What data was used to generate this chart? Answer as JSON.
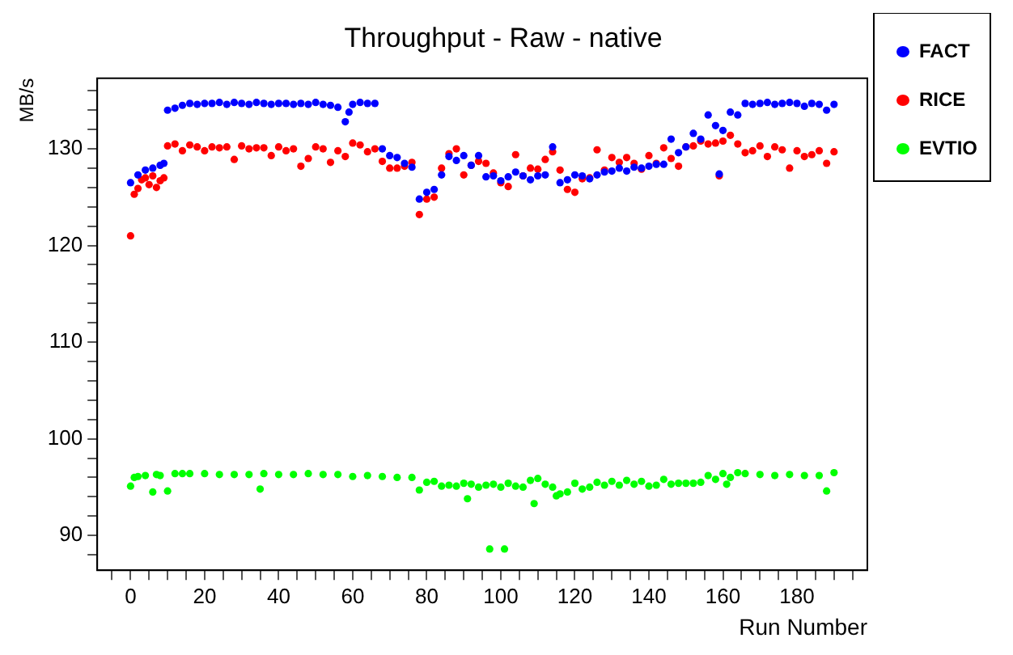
{
  "chart_data": {
    "type": "scatter",
    "title": "Throughput - Raw - native",
    "xlabel": "Run Number",
    "ylabel": "MB/s",
    "xlim": [
      -9,
      199
    ],
    "ylim": [
      86.4,
      137.3
    ],
    "xticks": [
      {
        "value": -5,
        "label": null
      },
      0,
      {
        "value": 5,
        "label": null
      },
      {
        "value": 10,
        "label": null
      },
      {
        "value": 15,
        "label": null
      },
      20,
      {
        "value": 25,
        "label": null
      },
      {
        "value": 30,
        "label": null
      },
      {
        "value": 35,
        "label": null
      },
      40,
      {
        "value": 45,
        "label": null
      },
      {
        "value": 50,
        "label": null
      },
      {
        "value": 55,
        "label": null
      },
      60,
      {
        "value": 65,
        "label": null
      },
      {
        "value": 70,
        "label": null
      },
      {
        "value": 75,
        "label": null
      },
      80,
      {
        "value": 85,
        "label": null
      },
      {
        "value": 90,
        "label": null
      },
      {
        "value": 95,
        "label": null
      },
      100,
      {
        "value": 105,
        "label": null
      },
      {
        "value": 110,
        "label": null
      },
      {
        "value": 115,
        "label": null
      },
      120,
      {
        "value": 125,
        "label": null
      },
      {
        "value": 130,
        "label": null
      },
      {
        "value": 135,
        "label": null
      },
      140,
      {
        "value": 145,
        "label": null
      },
      {
        "value": 150,
        "label": null
      },
      {
        "value": 155,
        "label": null
      },
      160,
      {
        "value": 165,
        "label": null
      },
      {
        "value": 170,
        "label": null
      },
      {
        "value": 175,
        "label": null
      },
      180,
      {
        "value": 185,
        "label": null
      },
      {
        "value": 190,
        "label": null
      },
      {
        "value": 195,
        "label": null
      }
    ],
    "yticks": [
      {
        "value": 88,
        "label": null
      },
      90,
      {
        "value": 92,
        "label": null
      },
      {
        "value": 94,
        "label": null
      },
      {
        "value": 96,
        "label": null
      },
      {
        "value": 98,
        "label": null
      },
      100,
      {
        "value": 102,
        "label": null
      },
      {
        "value": 104,
        "label": null
      },
      {
        "value": 106,
        "label": null
      },
      {
        "value": 108,
        "label": null
      },
      110,
      {
        "value": 112,
        "label": null
      },
      {
        "value": 114,
        "label": null
      },
      {
        "value": 116,
        "label": null
      },
      {
        "value": 118,
        "label": null
      },
      120,
      {
        "value": 122,
        "label": null
      },
      {
        "value": 124,
        "label": null
      },
      {
        "value": 126,
        "label": null
      },
      {
        "value": 128,
        "label": null
      },
      130,
      {
        "value": 132,
        "label": null
      },
      {
        "value": 134,
        "label": null
      },
      {
        "value": 136,
        "label": null
      }
    ],
    "grid": false,
    "legend": "top right",
    "marker": "circle",
    "series": [
      {
        "name": "FACT",
        "color": "#0000ff",
        "x": [
          0,
          2,
          4,
          6,
          8,
          9,
          10,
          12,
          14,
          16,
          18,
          20,
          22,
          24,
          26,
          28,
          30,
          32,
          34,
          36,
          38,
          40,
          42,
          44,
          46,
          48,
          50,
          52,
          54,
          56,
          58,
          59,
          60,
          62,
          64,
          66,
          68,
          70,
          72,
          74,
          76,
          78,
          80,
          82,
          84,
          86,
          88,
          90,
          92,
          94,
          96,
          98,
          100,
          102,
          104,
          106,
          108,
          110,
          112,
          114,
          116,
          118,
          120,
          122,
          124,
          126,
          128,
          130,
          132,
          134,
          136,
          138,
          140,
          142,
          144,
          146,
          148,
          150,
          152,
          154,
          156,
          158,
          159,
          160,
          162,
          164,
          166,
          168,
          170,
          172,
          174,
          176,
          178,
          180,
          182,
          184,
          186,
          188,
          190
        ],
        "values": [
          126.5,
          127.3,
          127.8,
          128.0,
          128.3,
          128.5,
          134.0,
          134.2,
          134.5,
          134.7,
          134.6,
          134.7,
          134.7,
          134.8,
          134.6,
          134.8,
          134.7,
          134.6,
          134.8,
          134.7,
          134.6,
          134.7,
          134.7,
          134.6,
          134.7,
          134.6,
          134.8,
          134.6,
          134.5,
          134.3,
          132.8,
          133.8,
          134.6,
          134.8,
          134.7,
          134.7,
          130.0,
          129.3,
          129.1,
          128.5,
          128.1,
          124.8,
          125.5,
          125.8,
          127.3,
          129.2,
          128.8,
          129.3,
          128.3,
          129.3,
          127.1,
          127.2,
          126.7,
          127.1,
          127.6,
          127.2,
          126.8,
          127.2,
          127.3,
          130.2,
          126.5,
          126.8,
          127.3,
          127.2,
          126.9,
          127.3,
          127.6,
          127.7,
          128.0,
          127.7,
          128.1,
          128.0,
          128.2,
          128.4,
          128.4,
          131.0,
          129.6,
          130.2,
          131.6,
          131.0,
          133.5,
          132.4,
          127.4,
          131.9,
          133.8,
          133.5,
          134.7,
          134.6,
          134.7,
          134.8,
          134.6,
          134.7,
          134.8,
          134.7,
          134.4,
          134.7,
          134.6,
          134.0,
          134.6
        ]
      },
      {
        "name": "RICE",
        "color": "#ff0000",
        "x": [
          0,
          1,
          2,
          3,
          4,
          5,
          6,
          7,
          8,
          9,
          10,
          12,
          14,
          16,
          18,
          20,
          22,
          24,
          26,
          28,
          30,
          32,
          34,
          36,
          38,
          40,
          42,
          44,
          46,
          48,
          50,
          52,
          54,
          56,
          58,
          60,
          62,
          64,
          66,
          68,
          70,
          72,
          74,
          76,
          78,
          80,
          82,
          84,
          86,
          88,
          90,
          92,
          94,
          96,
          98,
          100,
          102,
          104,
          106,
          108,
          110,
          112,
          114,
          116,
          118,
          120,
          122,
          124,
          126,
          128,
          130,
          132,
          134,
          136,
          138,
          140,
          142,
          144,
          146,
          148,
          150,
          152,
          154,
          156,
          158,
          159,
          160,
          162,
          164,
          166,
          168,
          170,
          172,
          174,
          176,
          178,
          180,
          182,
          184,
          186,
          188,
          190
        ],
        "values": [
          121.0,
          125.3,
          125.9,
          126.8,
          127.0,
          126.3,
          127.2,
          126.0,
          126.7,
          127.0,
          130.3,
          130.5,
          129.8,
          130.4,
          130.2,
          129.8,
          130.2,
          130.1,
          130.2,
          128.9,
          130.3,
          130.0,
          130.1,
          130.1,
          129.3,
          130.2,
          129.8,
          130.0,
          128.2,
          129.0,
          130.2,
          130.0,
          128.6,
          129.8,
          129.2,
          130.6,
          130.4,
          129.7,
          130.0,
          128.7,
          128.0,
          128.0,
          128.2,
          128.6,
          123.2,
          124.8,
          125.0,
          128.0,
          129.5,
          130.0,
          127.3,
          128.3,
          128.7,
          128.5,
          127.5,
          126.5,
          126.1,
          129.4,
          127.2,
          128.0,
          127.9,
          128.9,
          129.7,
          127.8,
          125.8,
          125.5,
          126.9,
          127.0,
          129.9,
          127.8,
          129.1,
          128.6,
          129.1,
          128.5,
          127.9,
          129.3,
          128.5,
          130.1,
          129.0,
          128.2,
          130.2,
          130.3,
          130.8,
          130.5,
          130.6,
          127.2,
          130.8,
          131.4,
          130.5,
          129.6,
          129.8,
          130.3,
          129.2,
          130.2,
          129.9,
          128.0,
          129.8,
          129.2,
          129.4,
          129.8,
          128.5,
          129.7
        ]
      },
      {
        "name": "EVTIO",
        "color": "#00ff00",
        "x": [
          0,
          1,
          2,
          4,
          6,
          7,
          8,
          10,
          12,
          14,
          16,
          20,
          24,
          28,
          32,
          35,
          36,
          40,
          44,
          48,
          52,
          56,
          60,
          64,
          68,
          72,
          76,
          78,
          80,
          82,
          84,
          86,
          88,
          90,
          91,
          92,
          94,
          96,
          97,
          98,
          100,
          101,
          102,
          104,
          106,
          108,
          109,
          110,
          112,
          114,
          115,
          116,
          118,
          120,
          122,
          124,
          126,
          128,
          130,
          132,
          134,
          136,
          138,
          140,
          142,
          144,
          146,
          148,
          150,
          152,
          154,
          156,
          158,
          160,
          161,
          162,
          164,
          166,
          170,
          174,
          178,
          182,
          186,
          188,
          190
        ],
        "values": [
          95.1,
          96.0,
          96.1,
          96.2,
          94.5,
          96.3,
          96.2,
          94.6,
          96.4,
          96.4,
          96.4,
          96.4,
          96.3,
          96.3,
          96.3,
          94.8,
          96.4,
          96.3,
          96.3,
          96.4,
          96.3,
          96.3,
          96.1,
          96.2,
          96.1,
          96.0,
          96.0,
          94.7,
          95.5,
          95.6,
          95.1,
          95.2,
          95.1,
          95.4,
          93.8,
          95.3,
          95.0,
          95.2,
          88.6,
          95.3,
          95.0,
          88.6,
          95.4,
          95.1,
          95.0,
          95.7,
          93.3,
          95.9,
          95.3,
          95.0,
          94.1,
          94.3,
          94.5,
          95.4,
          94.8,
          95.0,
          95.5,
          95.2,
          95.6,
          95.2,
          95.7,
          95.3,
          95.6,
          95.1,
          95.2,
          95.8,
          95.3,
          95.4,
          95.4,
          95.4,
          95.5,
          96.2,
          95.8,
          96.4,
          95.3,
          96.0,
          96.5,
          96.4,
          96.3,
          96.2,
          96.3,
          96.2,
          96.2,
          94.6,
          96.5
        ]
      }
    ]
  }
}
